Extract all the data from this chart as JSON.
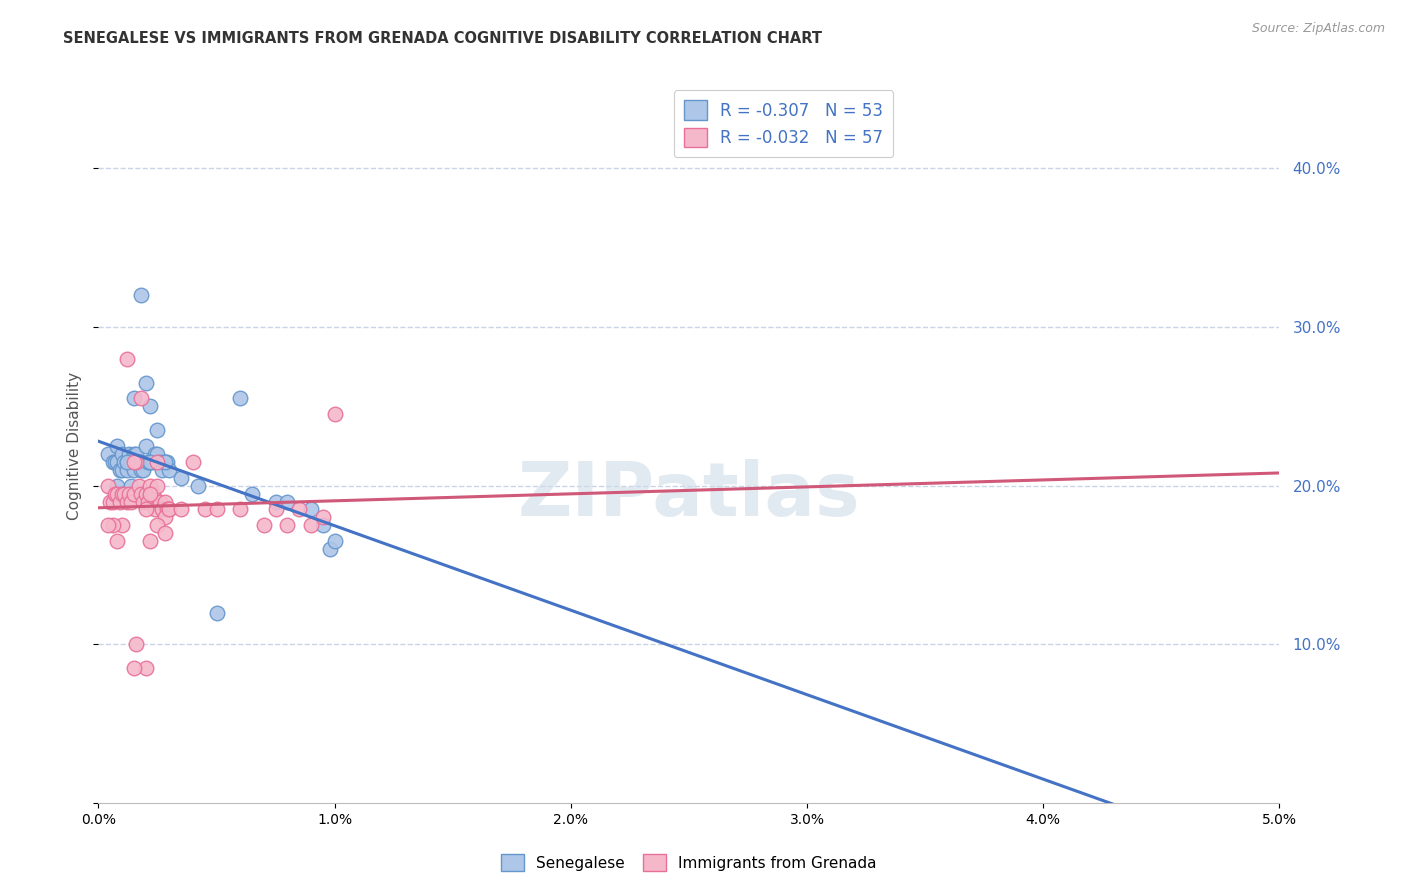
{
  "title": "SENEGALESE VS IMMIGRANTS FROM GRENADA COGNITIVE DISABILITY CORRELATION CHART",
  "source": "Source: ZipAtlas.com",
  "ylabel": "Cognitive Disability",
  "blue_label": "Senegalese",
  "pink_label": "Immigrants from Grenada",
  "blue_r": "-0.307",
  "blue_n": "53",
  "pink_r": "-0.032",
  "pink_n": "57",
  "blue_color": "#aec6e8",
  "pink_color": "#f5b8cb",
  "blue_edge_color": "#6496cc",
  "pink_edge_color": "#e87098",
  "blue_line_color": "#4472c4",
  "pink_line_color": "#d05878",
  "background_color": "#ffffff",
  "grid_color": "#c8d4e8",
  "watermark": "ZIPatlas",
  "xlim": [
    0.0,
    0.05
  ],
  "ylim": [
    0.0,
    0.45
  ],
  "xticks": [
    0.0,
    0.01,
    0.02,
    0.03,
    0.04,
    0.05
  ],
  "yticks": [
    0.0,
    0.1,
    0.2,
    0.3,
    0.4
  ],
  "blue_x": [
    0.0004,
    0.0006,
    0.0007,
    0.0008,
    0.0008,
    0.0009,
    0.001,
    0.001,
    0.0011,
    0.0012,
    0.0012,
    0.0013,
    0.0014,
    0.0015,
    0.0015,
    0.0016,
    0.0017,
    0.0018,
    0.0018,
    0.0019,
    0.002,
    0.0021,
    0.0022,
    0.0023,
    0.0024,
    0.0025,
    0.0026,
    0.0027,
    0.0028,
    0.0029,
    0.003,
    0.0018,
    0.002,
    0.0022,
    0.0025,
    0.0028,
    0.0015,
    0.0012,
    0.0008,
    0.001,
    0.0014,
    0.0042,
    0.005,
    0.0022,
    0.0035,
    0.006,
    0.0065,
    0.0075,
    0.008,
    0.009,
    0.0095,
    0.0098,
    0.01
  ],
  "blue_y": [
    0.22,
    0.215,
    0.215,
    0.215,
    0.225,
    0.21,
    0.22,
    0.21,
    0.215,
    0.215,
    0.21,
    0.22,
    0.215,
    0.21,
    0.22,
    0.22,
    0.215,
    0.21,
    0.215,
    0.21,
    0.225,
    0.215,
    0.215,
    0.215,
    0.22,
    0.22,
    0.215,
    0.21,
    0.215,
    0.215,
    0.21,
    0.32,
    0.265,
    0.25,
    0.235,
    0.215,
    0.255,
    0.215,
    0.2,
    0.195,
    0.2,
    0.2,
    0.12,
    0.215,
    0.205,
    0.255,
    0.195,
    0.19,
    0.19,
    0.185,
    0.175,
    0.16,
    0.165
  ],
  "pink_x": [
    0.0004,
    0.0005,
    0.0006,
    0.0007,
    0.0008,
    0.0009,
    0.001,
    0.0011,
    0.0012,
    0.0013,
    0.0014,
    0.0015,
    0.0016,
    0.0017,
    0.0018,
    0.0019,
    0.002,
    0.0021,
    0.0022,
    0.0023,
    0.0024,
    0.0025,
    0.0026,
    0.0027,
    0.0028,
    0.0029,
    0.003,
    0.0012,
    0.0015,
    0.0018,
    0.002,
    0.0022,
    0.0025,
    0.0028,
    0.002,
    0.0015,
    0.001,
    0.0008,
    0.0006,
    0.0004,
    0.0025,
    0.003,
    0.0035,
    0.004,
    0.0045,
    0.005,
    0.006,
    0.007,
    0.0075,
    0.008,
    0.0085,
    0.009,
    0.0095,
    0.01,
    0.0016,
    0.0022,
    0.0028
  ],
  "pink_y": [
    0.2,
    0.19,
    0.19,
    0.195,
    0.195,
    0.19,
    0.195,
    0.195,
    0.19,
    0.195,
    0.19,
    0.195,
    0.215,
    0.2,
    0.195,
    0.19,
    0.195,
    0.19,
    0.2,
    0.195,
    0.185,
    0.2,
    0.19,
    0.185,
    0.19,
    0.185,
    0.185,
    0.28,
    0.215,
    0.255,
    0.185,
    0.195,
    0.215,
    0.18,
    0.085,
    0.085,
    0.175,
    0.165,
    0.175,
    0.175,
    0.175,
    0.185,
    0.185,
    0.215,
    0.185,
    0.185,
    0.185,
    0.175,
    0.185,
    0.175,
    0.185,
    0.175,
    0.18,
    0.245,
    0.1,
    0.165,
    0.17
  ]
}
